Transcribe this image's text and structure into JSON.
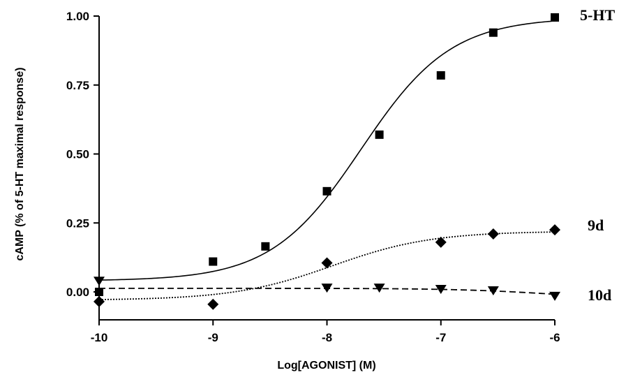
{
  "chart_data": {
    "type": "scatter",
    "xlabel": "Log[AGONIST] (M)",
    "ylabel": "cAMP (% of 5-HT maximal response)",
    "xlim": [
      -10,
      -6
    ],
    "ylim": [
      -0.1,
      1.0
    ],
    "x_ticks": [
      "-10",
      "-9",
      "-8",
      "-7",
      "-6"
    ],
    "y_ticks": [
      "0.00",
      "0.25",
      "0.50",
      "0.75",
      "1.00"
    ],
    "grid": false,
    "legend": "inline labels at right",
    "series": [
      {
        "name": "5-HT",
        "marker": "square",
        "line_style": "solid",
        "x": [
          -10,
          -9,
          -8.54,
          -8,
          -7.54,
          -7,
          -6.54,
          -6
        ],
        "y": [
          0.0,
          0.11,
          0.165,
          0.365,
          0.57,
          0.785,
          0.94,
          0.995
        ],
        "fit": {
          "bottom": 0.04,
          "top": 0.995,
          "logEC50": -7.7,
          "hill": 1.1
        }
      },
      {
        "name": "9d",
        "marker": "diamond",
        "line_style": "dotted",
        "x": [
          -10,
          -9,
          -8,
          -7,
          -6.54,
          -6
        ],
        "y": [
          -0.035,
          -0.045,
          0.105,
          0.18,
          0.21,
          0.225
        ],
        "fit": {
          "bottom": -0.03,
          "top": 0.22,
          "logEC50": -7.95,
          "hill": 1.0
        }
      },
      {
        "name": "10d",
        "marker": "triangle-down",
        "line_style": "dashed",
        "x": [
          -10,
          -8,
          -7.54,
          -7,
          -6.54,
          -6
        ],
        "y": [
          0.04,
          0.015,
          0.015,
          0.01,
          0.005,
          -0.015
        ],
        "fit": {
          "bottom": 0.013,
          "top": -0.03,
          "logEC50": -6.0,
          "hill": 1.0
        }
      }
    ]
  }
}
